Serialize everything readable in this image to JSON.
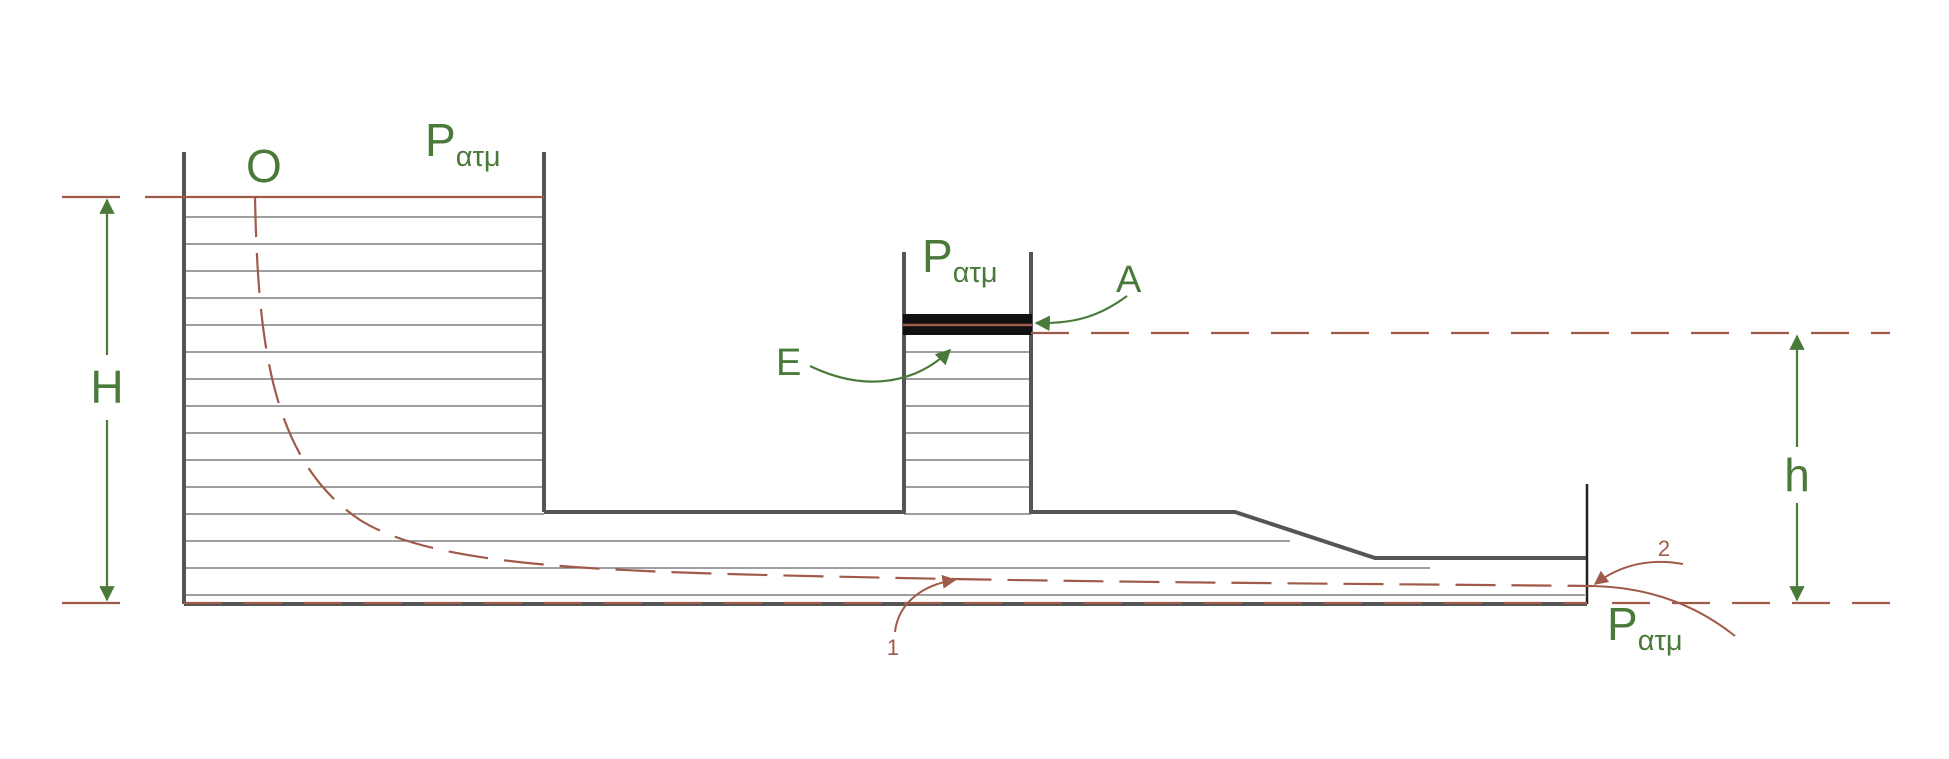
{
  "colors": {
    "green": "#4a7a3a",
    "brown": "#a05a4a",
    "wall": "#555555",
    "fluid_line": "#666666",
    "piston": "#111111"
  },
  "labels": {
    "point_o": "O",
    "p_atm_symbol": "P",
    "p_atm_subscript": "ατμ",
    "label_e": "E",
    "label_a": "A",
    "height_big": "H",
    "height_small": "h",
    "point_1": "1",
    "point_2": "2"
  }
}
